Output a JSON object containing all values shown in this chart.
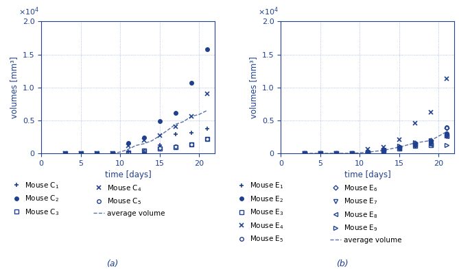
{
  "color": "#1f3f8f",
  "color_light": "#4472c4",
  "background": "#ffffff",
  "xlim": [
    0,
    22
  ],
  "ylim": [
    0,
    20000
  ],
  "xticks": [
    0,
    5,
    10,
    15,
    20
  ],
  "yticks": [
    0,
    5000,
    10000,
    15000,
    20000
  ],
  "xlabel": "time [days]",
  "ylabel": "volumes [mm³]",
  "panel_a_label": "(a)",
  "panel_b_label": "(b)",
  "C1_t": [
    3,
    5,
    7,
    9,
    11,
    13,
    15,
    17,
    19,
    21
  ],
  "C1_v": [
    0,
    0,
    0,
    0,
    200,
    200,
    1200,
    2900,
    3100,
    3700
  ],
  "C2_t": [
    3,
    5,
    7,
    9,
    11,
    13,
    15,
    17,
    19,
    21
  ],
  "C2_v": [
    0,
    0,
    0,
    0,
    1600,
    2400,
    4900,
    6100,
    10700,
    15800
  ],
  "C3_t": [
    3,
    5,
    7,
    9,
    11,
    13,
    15,
    17,
    19,
    21
  ],
  "C3_v": [
    0,
    0,
    0,
    0,
    100,
    400,
    700,
    900,
    1300,
    2200
  ],
  "C4_t": [
    3,
    5,
    7,
    9,
    11,
    13,
    15,
    17,
    19,
    21
  ],
  "C4_v": [
    0,
    0,
    0,
    0,
    1100,
    2000,
    2700,
    4000,
    5600,
    9000
  ],
  "C5_t": [
    3,
    5,
    7,
    9,
    11,
    13,
    15,
    17,
    19,
    21
  ],
  "C5_v": [
    0,
    0,
    0,
    0,
    100,
    300,
    800,
    1000,
    1400,
    2200
  ],
  "avg_t": [
    9,
    10,
    11,
    12,
    13,
    14,
    15,
    16,
    17,
    18,
    19,
    20,
    21
  ],
  "avg_v": [
    0,
    200,
    600,
    1200,
    1460,
    1900,
    2660,
    3500,
    4400,
    4800,
    5600,
    5900,
    6500
  ],
  "E1_t": [
    3,
    5,
    7,
    9,
    11,
    13,
    15,
    17,
    19,
    21
  ],
  "E1_v": [
    0,
    0,
    0,
    0,
    100,
    500,
    800,
    1200,
    1500,
    2600
  ],
  "E2_t": [
    3,
    5,
    7,
    9,
    11,
    13,
    15,
    17,
    19,
    21
  ],
  "E2_v": [
    0,
    0,
    0,
    0,
    200,
    500,
    900,
    1400,
    1800,
    3000
  ],
  "E3_t": [
    3,
    5,
    7,
    9,
    11,
    13,
    15,
    17,
    19,
    21
  ],
  "E3_v": [
    0,
    0,
    0,
    0,
    100,
    400,
    700,
    1100,
    1200,
    2700
  ],
  "E4_t": [
    3,
    5,
    7,
    9,
    11,
    13,
    15,
    17,
    19,
    21
  ],
  "E4_v": [
    0,
    0,
    0,
    0,
    600,
    900,
    2100,
    4600,
    6200,
    11300
  ],
  "E5_t": [
    3,
    5,
    7,
    9,
    11,
    13,
    15,
    17,
    19,
    21
  ],
  "E5_v": [
    0,
    0,
    0,
    0,
    100,
    400,
    800,
    1200,
    1500,
    3900
  ],
  "E6_t": [
    3,
    5,
    7,
    9,
    11,
    13,
    15,
    17,
    19,
    21
  ],
  "E6_v": [
    0,
    0,
    0,
    0,
    100,
    500,
    900,
    1600,
    2000,
    3800
  ],
  "E7_t": [
    3,
    5,
    7,
    9,
    11,
    13,
    15,
    17,
    19,
    21
  ],
  "E7_v": [
    0,
    0,
    0,
    0,
    100,
    400,
    700,
    1100,
    1600,
    2600
  ],
  "E8_t": [
    3,
    5,
    7,
    9,
    11,
    13,
    15,
    17,
    19,
    21
  ],
  "E8_v": [
    0,
    0,
    0,
    0,
    100,
    500,
    700,
    1300,
    1400,
    2600
  ],
  "E9_t": [
    3,
    5,
    7,
    9,
    11,
    13,
    15,
    17,
    19,
    21
  ],
  "E9_v": [
    0,
    0,
    0,
    0,
    100,
    500,
    1100,
    1700,
    2000,
    1200
  ],
  "avg_E_t": [
    3,
    5,
    7,
    9,
    11,
    13,
    15,
    17,
    19,
    21
  ],
  "avg_E_v": [
    0,
    0,
    0,
    0,
    170,
    460,
    940,
    1580,
    1940,
    3270
  ]
}
